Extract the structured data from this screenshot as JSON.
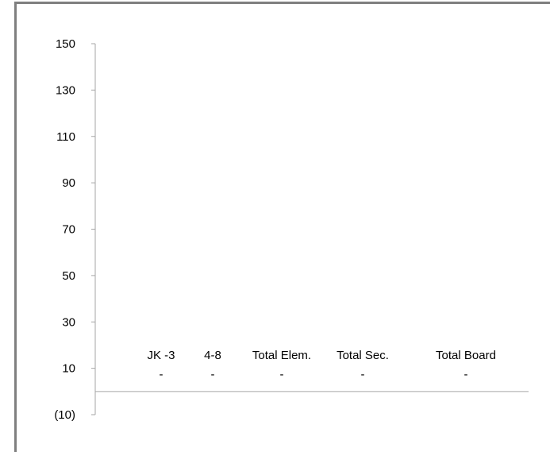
{
  "chart_data": {
    "type": "bar",
    "title": "",
    "xlabel": "",
    "ylabel": "",
    "ylim": [
      -10,
      150
    ],
    "y_ticks": [
      "150",
      "130",
      "110",
      "90",
      "70",
      "50",
      "30",
      "10",
      "(10)"
    ],
    "y_tick_values": [
      150,
      130,
      110,
      90,
      70,
      50,
      30,
      10,
      -10
    ],
    "categories": [
      "JK -3",
      "4-8",
      "Total Elem.",
      "Total Sec.",
      "Total Board"
    ],
    "values": [
      0,
      0,
      0,
      0,
      0
    ],
    "data_labels": [
      "-",
      "-",
      "-",
      "-",
      "-"
    ],
    "grid": false,
    "legend": "none",
    "colors": {
      "axis": "#a6a6a6",
      "frame": "#7f7f7f",
      "text": "#000000"
    }
  }
}
